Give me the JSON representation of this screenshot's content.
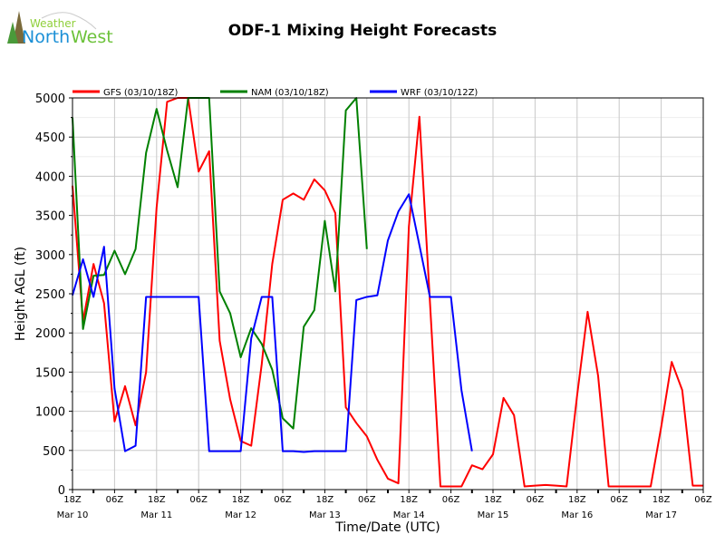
{
  "logo": {
    "line1": "Weather",
    "line2a": "North",
    "line2b": "West"
  },
  "chart_data": {
    "type": "line",
    "title": "ODF-1 Mixing Height Forecasts",
    "xlabel": "Time/Date (UTC)",
    "ylabel": "Height AGL (ft)",
    "ylim": [
      0,
      5000
    ],
    "yticks": [
      0,
      500,
      1000,
      1500,
      2000,
      2500,
      3000,
      3500,
      4000,
      4500,
      5000
    ],
    "x_unit": "hours since 18Z Mar 10",
    "xlim": [
      0,
      180
    ],
    "xtick_labels": [
      "18Z",
      "06Z",
      "18Z",
      "06Z",
      "18Z",
      "06Z",
      "18Z",
      "06Z",
      "18Z",
      "06Z",
      "18Z",
      "06Z",
      "18Z",
      "06Z",
      "18Z",
      "06Z"
    ],
    "date_labels": [
      "Mar 10",
      "Mar 11",
      "Mar 12",
      "Mar 13",
      "Mar 14",
      "Mar 15",
      "Mar 16",
      "Mar 17"
    ],
    "grid": true,
    "legend_placement": "top",
    "series": [
      {
        "name": "GFS (03/10/18Z)",
        "color": "#ff0000",
        "step_hours": 3,
        "values": [
          3880,
          2150,
          2880,
          2380,
          870,
          1320,
          820,
          1500,
          3600,
          4950,
          5000,
          5000,
          4060,
          4320,
          1900,
          1150,
          620,
          560,
          1600,
          2880,
          3700,
          3780,
          3700,
          3960,
          3820,
          3530,
          1050,
          850,
          680,
          380,
          140,
          80,
          3360,
          4760,
          2400,
          40,
          40,
          40,
          310,
          260,
          450,
          1170,
          950,
          40,
          50,
          60,
          50,
          40,
          1200,
          2270,
          1450,
          40,
          40,
          40,
          40,
          40,
          800,
          1630,
          1270,
          50,
          50
        ]
      },
      {
        "name": "NAM (03/10/18Z)",
        "color": "#008000",
        "step_hours": 3,
        "values": [
          4750,
          2050,
          2730,
          2740,
          3050,
          2750,
          3070,
          4300,
          4860,
          4330,
          3860,
          5000,
          5000,
          5000,
          2530,
          2250,
          1690,
          2060,
          1860,
          1530,
          910,
          780,
          2080,
          2290,
          3430,
          2530,
          4840,
          5000,
          3070
        ]
      },
      {
        "name": "WRF (03/10/12Z)",
        "color": "#0000ff",
        "step_hours": 3,
        "values": [
          2480,
          2940,
          2460,
          3100,
          1290,
          490,
          560,
          2460,
          2460,
          2460,
          2460,
          2460,
          2460,
          490,
          490,
          490,
          490,
          1930,
          2460,
          2460,
          490,
          490,
          480,
          490,
          490,
          490,
          490,
          2420,
          2460,
          2480,
          3180,
          3550,
          3770,
          3120,
          2460,
          2460,
          2460,
          1270,
          490
        ]
      }
    ]
  }
}
